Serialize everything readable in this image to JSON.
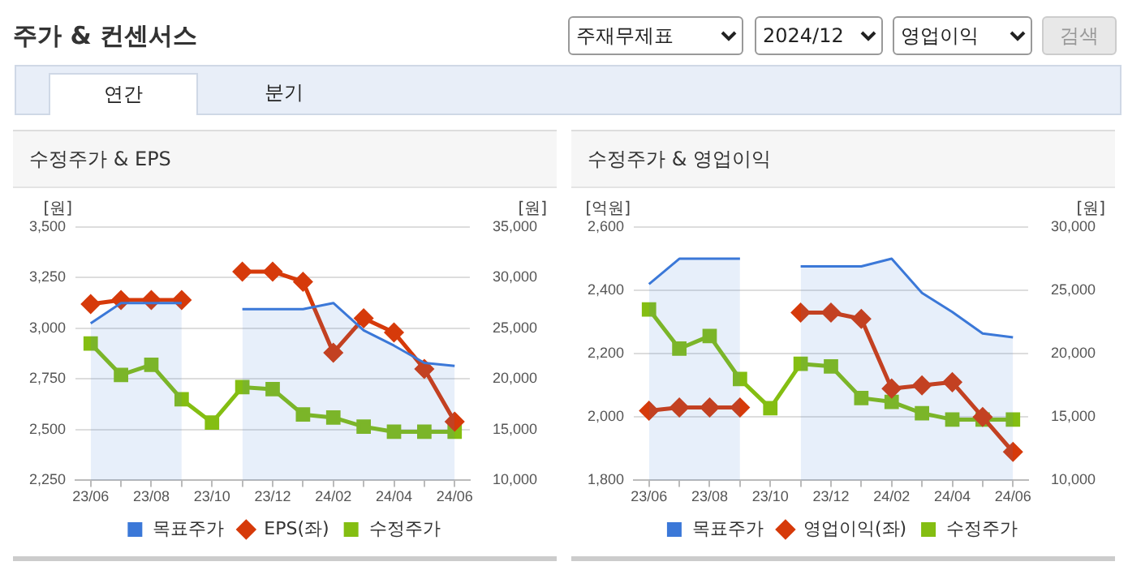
{
  "chart_data": [
    {
      "type": "line",
      "title": "수정주가 & EPS",
      "ylabel": "[원]",
      "y2label": "[원]",
      "annotations": [
        "주가 & 컨센서스",
        "주재무제표",
        "2024/12",
        "영업이익",
        "검색",
        "연간",
        "분기"
      ],
      "categories": [
        "23/06",
        null,
        "23/08",
        null,
        "23/10",
        null,
        "23/12",
        null,
        "24/02",
        null,
        "24/04",
        null,
        "24/06"
      ],
      "ylim": [
        2250,
        3500
      ],
      "yticks": [
        {
          "value": 2250,
          "label": "2,250"
        },
        {
          "value": 2500,
          "label": "2,500"
        },
        {
          "value": 2750,
          "label": "2,750"
        },
        {
          "value": 3000,
          "label": "3,000"
        },
        {
          "value": 3250,
          "label": "3,250"
        },
        {
          "value": 3500,
          "label": "3,500"
        }
      ],
      "y2lim": [
        10000,
        35000
      ],
      "y2ticks": [
        {
          "value": 10000,
          "label": "10,000"
        },
        {
          "value": 15000,
          "label": "15,000"
        },
        {
          "value": 20000,
          "label": "20,000"
        },
        {
          "value": 25000,
          "label": "25,000"
        },
        {
          "value": 30000,
          "label": "30,000"
        },
        {
          "value": 35000,
          "label": "35,000"
        }
      ],
      "grid": "y",
      "legend": "bottom",
      "series": [
        {
          "name": "목표주가",
          "type": "area",
          "axis": "y2",
          "color": "#3b78d8",
          "marker": "none",
          "values": [
            25500,
            27500,
            27500,
            27500,
            null,
            26900,
            26900,
            26900,
            27500,
            24800,
            23300,
            21600,
            21300
          ]
        },
        {
          "name": "EPS(좌)",
          "type": "line",
          "color": "#d63a0a",
          "marker": "diamond",
          "values": [
            3120,
            3140,
            3140,
            3140,
            null,
            3280,
            3280,
            3230,
            2880,
            3050,
            2980,
            2800,
            2540
          ]
        },
        {
          "name": "수정주가",
          "type": "line",
          "axis": "y2",
          "color": "#84be12",
          "marker": "square",
          "values": [
            23500,
            20400,
            21400,
            18000,
            15700,
            19200,
            19000,
            16500,
            16200,
            15300,
            14800,
            14800,
            14800
          ]
        }
      ]
    },
    {
      "type": "line",
      "title": "수정주가 & 영업이익",
      "ylabel": "[억원]",
      "y2label": "[원]",
      "categories": [
        "23/06",
        null,
        "23/08",
        null,
        "23/10",
        null,
        "23/12",
        null,
        "24/02",
        null,
        "24/04",
        null,
        "24/06"
      ],
      "ylim": [
        1800,
        2600
      ],
      "yticks": [
        {
          "value": 1800,
          "label": "1,800"
        },
        {
          "value": 2000,
          "label": "2,000"
        },
        {
          "value": 2200,
          "label": "2,200"
        },
        {
          "value": 2400,
          "label": "2,400"
        },
        {
          "value": 2600,
          "label": "2,600"
        }
      ],
      "y2lim": [
        10000,
        30000
      ],
      "y2ticks": [
        {
          "value": 10000,
          "label": "10,000"
        },
        {
          "value": 15000,
          "label": "15,000"
        },
        {
          "value": 20000,
          "label": "20,000"
        },
        {
          "value": 25000,
          "label": "25,000"
        },
        {
          "value": 30000,
          "label": "30,000"
        }
      ],
      "grid": "y",
      "legend": "bottom",
      "series": [
        {
          "name": "목표주가",
          "type": "area",
          "axis": "y2",
          "color": "#3b78d8",
          "marker": "none",
          "values": [
            25500,
            27500,
            27500,
            27500,
            null,
            26900,
            26900,
            26900,
            27500,
            24800,
            23300,
            21600,
            21300
          ]
        },
        {
          "name": "영업이익(좌)",
          "type": "line",
          "color": "#d63a0a",
          "marker": "diamond",
          "values": [
            2020,
            2030,
            2030,
            2030,
            null,
            2330,
            2330,
            2310,
            2090,
            2100,
            2110,
            2000,
            1890
          ]
        },
        {
          "name": "수정주가",
          "type": "line",
          "axis": "y2",
          "color": "#84be12",
          "marker": "square",
          "values": [
            23500,
            20400,
            21400,
            18000,
            15700,
            19200,
            19000,
            16500,
            16200,
            15300,
            14800,
            14800,
            14800
          ]
        }
      ]
    }
  ]
}
